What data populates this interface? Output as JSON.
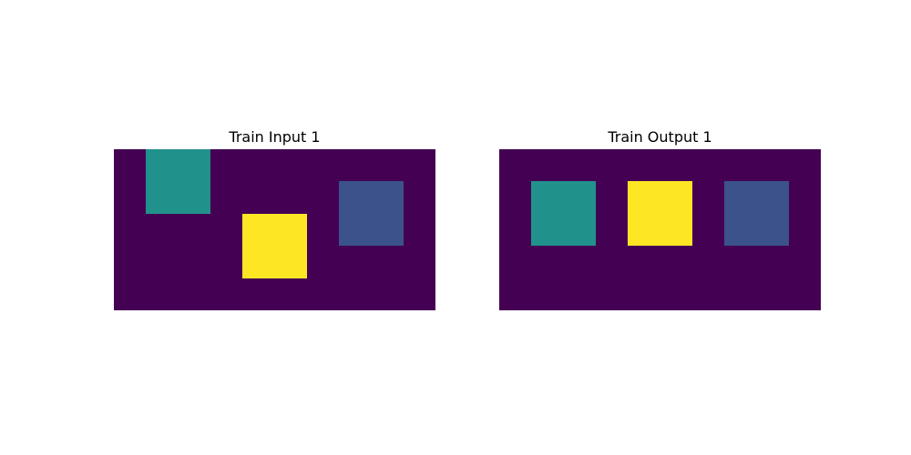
{
  "palette": {
    "0": "#440154",
    "2": "#3b528b",
    "4": "#21918c",
    "9": "#fde725"
  },
  "panels": [
    {
      "title": "Train Input 1",
      "grid": [
        [
          0,
          4,
          4,
          0,
          0,
          0,
          0,
          0,
          0,
          0
        ],
        [
          0,
          4,
          4,
          0,
          0,
          0,
          0,
          2,
          2,
          0
        ],
        [
          0,
          0,
          0,
          0,
          9,
          9,
          0,
          2,
          2,
          0
        ],
        [
          0,
          0,
          0,
          0,
          9,
          9,
          0,
          0,
          0,
          0
        ],
        [
          0,
          0,
          0,
          0,
          0,
          0,
          0,
          0,
          0,
          0
        ]
      ]
    },
    {
      "title": "Train Output 1",
      "grid": [
        [
          0,
          0,
          0,
          0,
          0,
          0,
          0,
          0,
          0,
          0
        ],
        [
          0,
          4,
          4,
          0,
          9,
          9,
          0,
          2,
          2,
          0
        ],
        [
          0,
          4,
          4,
          0,
          9,
          9,
          0,
          2,
          2,
          0
        ],
        [
          0,
          0,
          0,
          0,
          0,
          0,
          0,
          0,
          0,
          0
        ],
        [
          0,
          0,
          0,
          0,
          0,
          0,
          0,
          0,
          0,
          0
        ]
      ]
    }
  ]
}
